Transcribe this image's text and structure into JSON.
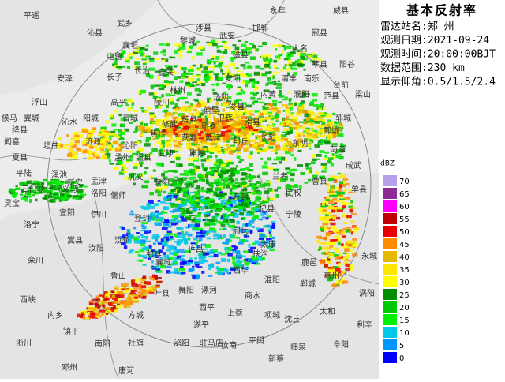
{
  "panel": {
    "title": "基本反射率",
    "info": [
      "雷达站名:郑 州",
      "观测日期:2021-09-24",
      "观测时间:20:00:00BJT",
      "数据范围:230 km",
      "显示仰角:0.5/1.5/2.4"
    ]
  },
  "legend": {
    "unit": "dBZ",
    "levels": [
      {
        "value": 70,
        "color": "#b4a0e8"
      },
      {
        "value": 65,
        "color": "#8c2a98"
      },
      {
        "value": 60,
        "color": "#ff00ff"
      },
      {
        "value": 55,
        "color": "#c00000"
      },
      {
        "value": 50,
        "color": "#e80000"
      },
      {
        "value": 45,
        "color": "#ff8c00"
      },
      {
        "value": 40,
        "color": "#e6b800"
      },
      {
        "value": 35,
        "color": "#ffe600"
      },
      {
        "value": 30,
        "color": "#ffff00"
      },
      {
        "value": 25,
        "color": "#008c00"
      },
      {
        "value": 20,
        "color": "#00c800"
      },
      {
        "value": 15,
        "color": "#00f000"
      },
      {
        "value": 10,
        "color": "#00c8e6"
      },
      {
        "value": 5,
        "color": "#0096ff"
      },
      {
        "value": 0,
        "color": "#0000ff"
      }
    ]
  },
  "map": {
    "places": [
      "平遥",
      "沁县",
      "武乡",
      "襄垣",
      "黎城",
      "涉县",
      "武安",
      "邯郸",
      "永年",
      "威县",
      "冠县",
      "大名",
      "莘县",
      "阳谷",
      "南乐",
      "清丰",
      "濮阳",
      "范县",
      "台前",
      "梁山",
      "郓城",
      "鄄城",
      "菏泽",
      "东明",
      "成武",
      "曹县",
      "单县",
      "民权",
      "宁陵",
      "兰考",
      "杞县",
      "开封",
      "尉氏",
      "太康",
      "扶沟",
      "西华",
      "淮阳",
      "商水",
      "项城",
      "沈丘",
      "鹿邑",
      "郸城",
      "亳州",
      "太和",
      "涡阳",
      "永城",
      "利辛",
      "阜阳",
      "临泉",
      "新蔡",
      "平舆",
      "汝南",
      "上蔡",
      "西平",
      "遂平",
      "驻马店",
      "漯河",
      "舞阳",
      "叶县",
      "方城",
      "泌阳",
      "社旗",
      "唐河",
      "南阳",
      "镇平",
      "邓州",
      "内乡",
      "淅川",
      "西峡",
      "栾川",
      "嵩县",
      "汝阳",
      "汝州",
      "鲁山",
      "郏县",
      "襄城",
      "许昌",
      "登封",
      "伊川",
      "宜阳",
      "洛宁",
      "新安",
      "洛阳",
      "孟津",
      "偃师",
      "巩义",
      "荥阳",
      "原阳",
      "延津",
      "新乡",
      "获嘉",
      "武陟",
      "温县",
      "孟州",
      "济源",
      "沁阳",
      "焦作",
      "修武",
      "辉县",
      "卫辉",
      "林州",
      "安阳",
      "汤阴",
      "鹤壁",
      "浚县",
      "滑县",
      "内黄",
      "长垣",
      "封丘",
      "磁县",
      "长治",
      "壶关",
      "陵川",
      "高平",
      "晋城",
      "阳城",
      "沁水",
      "垣曲",
      "长子",
      "屯留",
      "安泽",
      "浮山",
      "翼城",
      "绛县",
      "侯马",
      "闻喜",
      "夏县",
      "平陆",
      "三门峡",
      "渑池",
      "义马",
      "灵宝"
    ]
  }
}
